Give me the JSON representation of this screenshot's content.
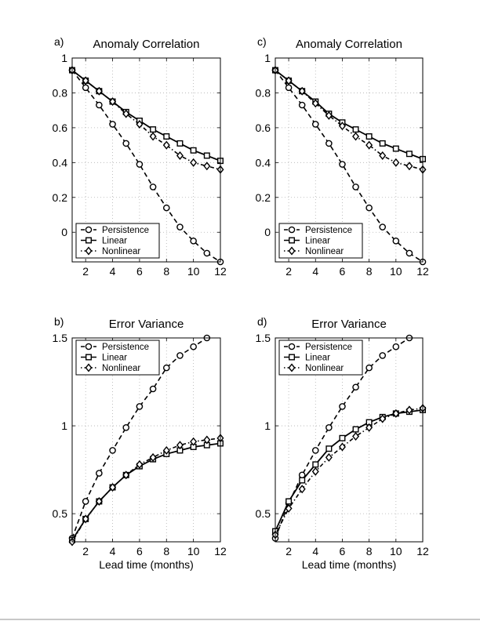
{
  "chart_data": [
    {
      "panel_label": "a)",
      "type": "line",
      "title": "Anomaly Correlation",
      "xlabel": "",
      "ylabel": "",
      "x": [
        1,
        2,
        3,
        4,
        5,
        6,
        7,
        8,
        9,
        10,
        11,
        12
      ],
      "xlim": [
        1,
        12
      ],
      "ylim": [
        -0.17,
        1
      ],
      "xticks": [
        2,
        4,
        6,
        8,
        10,
        12
      ],
      "yticks": [
        0,
        0.2,
        0.4,
        0.6,
        0.8,
        1
      ],
      "xtick_labels": [
        "2",
        "4",
        "6",
        "8",
        "10",
        "12"
      ],
      "ytick_labels": [
        "0",
        "0.2",
        "0.4",
        "0.6",
        "0.8",
        "1"
      ],
      "grid": true,
      "legend_position": "bottom-left",
      "series": [
        {
          "name": "Persistence",
          "style": "dashed",
          "marker": "circle",
          "values": [
            0.93,
            0.83,
            0.73,
            0.62,
            0.51,
            0.39,
            0.26,
            0.14,
            0.03,
            -0.05,
            -0.12,
            -0.17
          ]
        },
        {
          "name": "Linear",
          "style": "solid",
          "marker": "square",
          "values": [
            0.93,
            0.87,
            0.81,
            0.75,
            0.69,
            0.64,
            0.59,
            0.55,
            0.51,
            0.47,
            0.44,
            0.41
          ]
        },
        {
          "name": "Nonlinear",
          "style": "dashdot",
          "marker": "diamond",
          "values": [
            0.93,
            0.87,
            0.81,
            0.75,
            0.68,
            0.62,
            0.55,
            0.5,
            0.44,
            0.4,
            0.38,
            0.36
          ]
        }
      ]
    },
    {
      "panel_label": "c)",
      "type": "line",
      "title": "Anomaly Correlation",
      "xlabel": "",
      "ylabel": "",
      "x": [
        1,
        2,
        3,
        4,
        5,
        6,
        7,
        8,
        9,
        10,
        11,
        12
      ],
      "xlim": [
        1,
        12
      ],
      "ylim": [
        -0.17,
        1
      ],
      "xticks": [
        2,
        4,
        6,
        8,
        10,
        12
      ],
      "yticks": [
        0,
        0.2,
        0.4,
        0.6,
        0.8,
        1
      ],
      "xtick_labels": [
        "2",
        "4",
        "6",
        "8",
        "10",
        "12"
      ],
      "ytick_labels": [
        "0",
        "0.2",
        "0.4",
        "0.6",
        "0.8",
        "1"
      ],
      "grid": true,
      "legend_position": "bottom-left",
      "series": [
        {
          "name": "Persistence",
          "style": "dashed",
          "marker": "circle",
          "values": [
            0.93,
            0.83,
            0.73,
            0.62,
            0.51,
            0.39,
            0.26,
            0.14,
            0.03,
            -0.05,
            -0.12,
            -0.17
          ]
        },
        {
          "name": "Linear",
          "style": "solid",
          "marker": "square",
          "values": [
            0.93,
            0.87,
            0.81,
            0.75,
            0.68,
            0.63,
            0.59,
            0.55,
            0.51,
            0.48,
            0.45,
            0.42
          ]
        },
        {
          "name": "Nonlinear",
          "style": "dashdot",
          "marker": "diamond",
          "values": [
            0.93,
            0.87,
            0.81,
            0.74,
            0.67,
            0.61,
            0.55,
            0.5,
            0.44,
            0.4,
            0.38,
            0.36
          ]
        }
      ]
    },
    {
      "panel_label": "b)",
      "type": "line",
      "title": "Error Variance",
      "xlabel": "Lead time (months)",
      "ylabel": "",
      "x": [
        1,
        2,
        3,
        4,
        5,
        6,
        7,
        8,
        9,
        10,
        11,
        12
      ],
      "xlim": [
        1,
        12
      ],
      "ylim": [
        0.34,
        1.5
      ],
      "xticks": [
        2,
        4,
        6,
        8,
        10,
        12
      ],
      "yticks": [
        0.5,
        1,
        1.5
      ],
      "xtick_labels": [
        "2",
        "4",
        "6",
        "8",
        "10",
        "12"
      ],
      "ytick_labels": [
        "0.5",
        "1",
        "1.5"
      ],
      "grid": true,
      "legend_position": "top-left",
      "series": [
        {
          "name": "Persistence",
          "style": "dashed",
          "marker": "circle",
          "values": [
            0.36,
            0.57,
            0.73,
            0.86,
            0.99,
            1.11,
            1.21,
            1.33,
            1.4,
            1.45,
            1.5,
            null
          ]
        },
        {
          "name": "Linear",
          "style": "solid",
          "marker": "square",
          "values": [
            0.35,
            0.47,
            0.57,
            0.65,
            0.72,
            0.77,
            0.81,
            0.84,
            0.86,
            0.88,
            0.89,
            0.9
          ]
        },
        {
          "name": "Nonlinear",
          "style": "dashdot",
          "marker": "diamond",
          "values": [
            0.34,
            0.47,
            0.57,
            0.65,
            0.72,
            0.78,
            0.82,
            0.86,
            0.89,
            0.91,
            0.92,
            0.93
          ]
        }
      ]
    },
    {
      "panel_label": "d)",
      "type": "line",
      "title": "Error Variance",
      "xlabel": "Lead time (months)",
      "ylabel": "",
      "x": [
        1,
        2,
        3,
        4,
        5,
        6,
        7,
        8,
        9,
        10,
        11,
        12
      ],
      "xlim": [
        1,
        12
      ],
      "ylim": [
        0.34,
        1.5
      ],
      "xticks": [
        2,
        4,
        6,
        8,
        10,
        12
      ],
      "yticks": [
        0.5,
        1,
        1.5
      ],
      "xtick_labels": [
        "2",
        "4",
        "6",
        "8",
        "10",
        "12"
      ],
      "ytick_labels": [
        "0.5",
        "1",
        "1.5"
      ],
      "grid": true,
      "legend_position": "top-left",
      "series": [
        {
          "name": "Persistence",
          "style": "dashed",
          "marker": "circle",
          "values": [
            0.36,
            0.56,
            0.72,
            0.86,
            0.99,
            1.11,
            1.22,
            1.33,
            1.4,
            1.45,
            1.5,
            null
          ]
        },
        {
          "name": "Linear",
          "style": "solid",
          "marker": "square",
          "values": [
            0.4,
            0.57,
            0.69,
            0.78,
            0.87,
            0.93,
            0.98,
            1.02,
            1.05,
            1.07,
            1.08,
            1.09
          ]
        },
        {
          "name": "Nonlinear",
          "style": "dashdot",
          "marker": "diamond",
          "values": [
            0.38,
            0.53,
            0.64,
            0.74,
            0.82,
            0.88,
            0.94,
            0.99,
            1.04,
            1.07,
            1.09,
            1.1
          ]
        }
      ]
    }
  ],
  "colors": {
    "line": "#000000",
    "grid": "#b0b0b0",
    "axis": "#000000",
    "background": "#ffffff"
  }
}
